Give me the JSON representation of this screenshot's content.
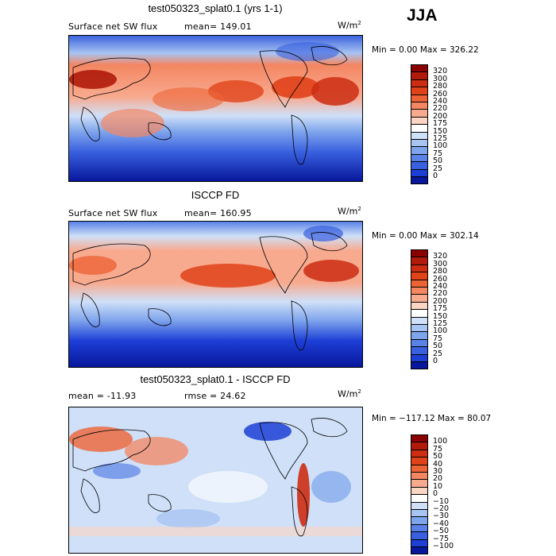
{
  "season": "JJA",
  "panels": [
    {
      "title": "test050323_splat0.1 (yrs 1-1)",
      "field": "Surface net SW flux",
      "stat_text": "mean= 149.01",
      "units_base": "W/m",
      "units_exp": "2",
      "minmax_text": "Min =   0.00 Max = 326.22",
      "colorbar_labels": [
        "320",
        "300",
        "280",
        "260",
        "240",
        "220",
        "200",
        "175",
        "150",
        "125",
        "100",
        "75",
        "50",
        "25",
        "0"
      ],
      "colorbar_colors": [
        "#8b0000",
        "#b01b0b",
        "#cd2d12",
        "#e0431a",
        "#ec6436",
        "#f48662",
        "#f8aa8f",
        "#fcd4c2",
        "#ffffff",
        "#cfe0f8",
        "#a8c4f2",
        "#7ea4ec",
        "#5a82e6",
        "#3960df",
        "#1d3fd6",
        "#08179c"
      ]
    },
    {
      "title": "ISCCP FD",
      "field": "Surface net SW flux",
      "stat_text": "mean= 160.95",
      "units_base": "W/m",
      "units_exp": "2",
      "minmax_text": "Min =   0.00 Max = 302.14",
      "colorbar_labels": [
        "320",
        "300",
        "280",
        "260",
        "240",
        "220",
        "200",
        "175",
        "150",
        "125",
        "100",
        "75",
        "50",
        "25",
        "0"
      ],
      "colorbar_colors": [
        "#8b0000",
        "#b01b0b",
        "#cd2d12",
        "#e0431a",
        "#ec6436",
        "#f48662",
        "#f8aa8f",
        "#fcd4c2",
        "#ffffff",
        "#cfe0f8",
        "#a8c4f2",
        "#7ea4ec",
        "#5a82e6",
        "#3960df",
        "#1d3fd6",
        "#08179c"
      ]
    },
    {
      "title": "test050323_splat0.1 - ISCCP FD",
      "stat_text": "mean = -11.93",
      "rmse_text": "rmse =  24.62",
      "units_base": "W/m",
      "units_exp": "2",
      "minmax_text": "Min = −117.12 Max =  80.07",
      "colorbar_labels": [
        "100",
        "75",
        "50",
        "40",
        "30",
        "20",
        "10",
        "0",
        "−10",
        "−20",
        "−30",
        "−40",
        "−50",
        "−75",
        "−100"
      ],
      "colorbar_colors": [
        "#8b0000",
        "#b01b0b",
        "#cd2d12",
        "#e0431a",
        "#ec6436",
        "#f48662",
        "#f8aa8f",
        "#fcd4c2",
        "#ffffff",
        "#cfe0f8",
        "#a8c4f2",
        "#7ea4ec",
        "#5a82e6",
        "#3960df",
        "#1d3fd6",
        "#08179c"
      ]
    }
  ]
}
